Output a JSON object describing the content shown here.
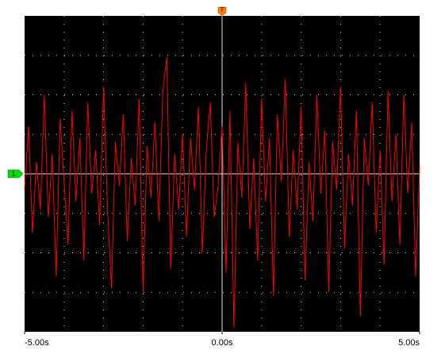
{
  "chart_data": {
    "type": "line",
    "x": [
      -5,
      -4.9,
      -4.8,
      -4.7,
      -4.6,
      -4.5,
      -4.4,
      -4.3,
      -4.2,
      -4.1,
      -4,
      -3.9,
      -3.8,
      -3.7,
      -3.6,
      -3.5,
      -3.4,
      -3.3,
      -3.2,
      -3.1,
      -3,
      -2.9,
      -2.8,
      -2.7,
      -2.6,
      -2.5,
      -2.4,
      -2.3,
      -2.2,
      -2.1,
      -2,
      -1.9,
      -1.8,
      -1.7,
      -1.6,
      -1.5,
      -1.4,
      -1.3,
      -1.2,
      -1.1,
      -1,
      -0.9,
      -0.8,
      -0.7,
      -0.6,
      -0.5,
      -0.4,
      -0.3,
      -0.2,
      -0.1,
      0,
      0.1,
      0.2,
      0.3,
      0.4,
      0.5,
      0.6,
      0.7,
      0.8,
      0.9,
      1,
      1.1,
      1.2,
      1.3,
      1.4,
      1.5,
      1.6,
      1.7,
      1.8,
      1.9,
      2,
      2.1,
      2.2,
      2.3,
      2.4,
      2.5,
      2.6,
      2.7,
      2.8,
      2.9,
      3,
      3.1,
      3.2,
      3.3,
      3.4,
      3.5,
      3.6,
      3.7,
      3.8,
      3.9,
      4,
      4.1,
      4.2,
      4.3,
      4.4,
      4.5,
      4.6,
      4.7,
      4.8,
      4.9,
      5
    ],
    "series": [
      {
        "color": "#ff0000",
        "values": [
          -0.4,
          1.2,
          -1.5,
          0.3,
          -0.9,
          2.0,
          -1.1,
          0.5,
          -2.6,
          1.4,
          -0.2,
          -1.8,
          1.6,
          -0.7,
          0.9,
          -2.2,
          1.8,
          -0.5,
          0.6,
          -1.3,
          2.2,
          -0.9,
          -2.9,
          0.8,
          -0.3,
          1.5,
          -1.7,
          0.4,
          -0.8,
          1.9,
          -3.0,
          0.7,
          -0.6,
          1.3,
          -1.2,
          2.1,
          2.95,
          -2.4,
          0.5,
          -0.9,
          1.0,
          -1.6,
          0.9,
          -0.4,
          1.7,
          -2.0,
          0.6,
          1.8,
          -1.1,
          -0.3,
          1.2,
          -2.5,
          1.6,
          -3.9,
          0.8,
          -0.6,
          2.3,
          -1.4,
          0.4,
          -2.2,
          1.9,
          -0.7,
          0.9,
          -3.1,
          1.5,
          -0.2,
          2.4,
          -1.6,
          0.6,
          -0.9,
          1.7,
          -2.7,
          0.3,
          -1.2,
          2.0,
          -0.5,
          1.1,
          -3.0,
          0.8,
          -0.4,
          2.2,
          -1.9,
          0.5,
          -0.8,
          1.6,
          -3.6,
          0.9,
          -0.3,
          1.8,
          -1.5,
          0.6,
          -2.3,
          2.1,
          -0.7,
          1.0,
          -1.8,
          2.0,
          -0.5,
          1.3,
          -2.6,
          0.2
        ]
      }
    ],
    "xlim": [
      -5,
      5
    ],
    "ylim": [
      -4,
      4
    ],
    "xticks": [
      {
        "value": -5,
        "label": "-5.00s"
      },
      {
        "value": 0,
        "label": "0.00s"
      },
      {
        "value": 5,
        "label": "5.00s"
      }
    ],
    "xgrid": [
      -4,
      -3,
      -2,
      -1,
      0,
      1,
      2,
      3,
      4
    ],
    "ygrid": [
      -3,
      -2,
      -1,
      0,
      1,
      2,
      3
    ],
    "trigger_label": "T",
    "channel_label": "1",
    "channel_color": "#00dd00",
    "trigger_color": "#ff8000",
    "background": "#000000",
    "grid_color": "#ffffff"
  }
}
